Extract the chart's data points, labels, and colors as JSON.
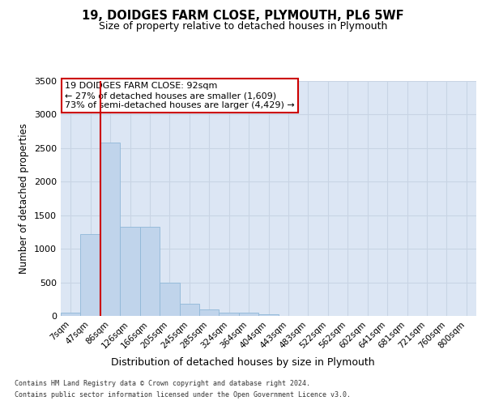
{
  "title_line1": "19, DOIDGES FARM CLOSE, PLYMOUTH, PL6 5WF",
  "title_line2": "Size of property relative to detached houses in Plymouth",
  "xlabel": "Distribution of detached houses by size in Plymouth",
  "ylabel": "Number of detached properties",
  "bar_labels": [
    "7sqm",
    "47sqm",
    "86sqm",
    "126sqm",
    "166sqm",
    "205sqm",
    "245sqm",
    "285sqm",
    "324sqm",
    "364sqm",
    "404sqm",
    "443sqm",
    "483sqm",
    "522sqm",
    "562sqm",
    "602sqm",
    "641sqm",
    "681sqm",
    "721sqm",
    "760sqm",
    "800sqm"
  ],
  "bar_values": [
    50,
    1220,
    2580,
    1330,
    1330,
    490,
    185,
    95,
    50,
    45,
    30,
    0,
    0,
    0,
    0,
    0,
    0,
    0,
    0,
    0,
    0
  ],
  "bar_color": "#c0d4eb",
  "bar_edge_color": "#90b8d8",
  "grid_color": "#c8d4e4",
  "background_color": "#dce6f4",
  "ylim": [
    0,
    3500
  ],
  "yticks": [
    0,
    500,
    1000,
    1500,
    2000,
    2500,
    3000,
    3500
  ],
  "vline_x_idx": 2,
  "vline_color": "#cc0000",
  "annotation_line1": "19 DOIDGES FARM CLOSE: 92sqm",
  "annotation_line2": "← 27% of detached houses are smaller (1,609)",
  "annotation_line3": "73% of semi-detached houses are larger (4,429) →",
  "annotation_box_edgecolor": "#cc0000",
  "footer_line1": "Contains HM Land Registry data © Crown copyright and database right 2024.",
  "footer_line2": "Contains public sector information licensed under the Open Government Licence v3.0."
}
